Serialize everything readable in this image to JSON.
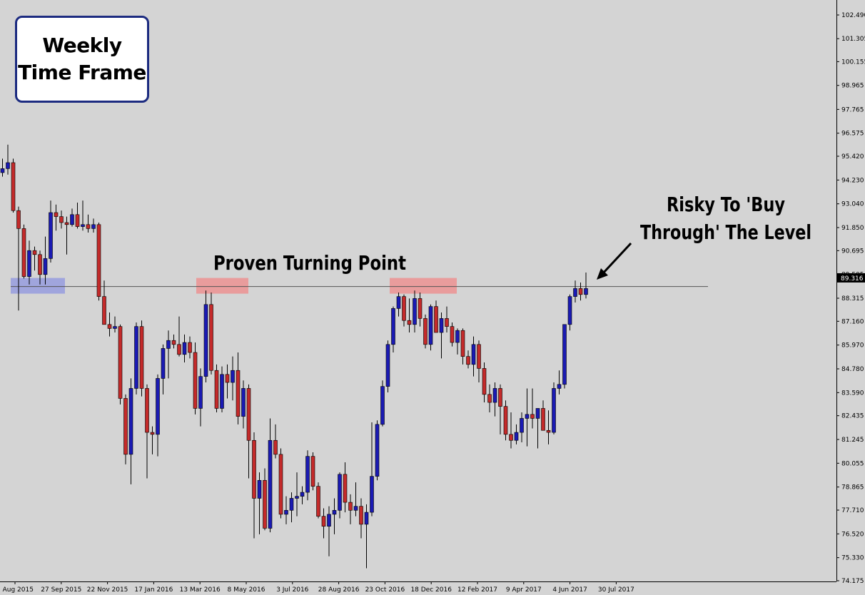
{
  "annotations": {
    "timeframe": "Weekly\nTime Frame",
    "turning_point": "Proven Turning Point",
    "risky_line1": "Risky To 'Buy",
    "risky_line2": "Through' The Level"
  },
  "current_price_label": "89.316",
  "colors": {
    "background": "#d4d4d4",
    "bull": "#1a1ab3",
    "bear": "#c42a2a",
    "wick": "#000000",
    "level_line": "#555555",
    "zone_blue": "#8f95e0",
    "zone_red": "#f08a8a",
    "frame_border": "#1c2b80"
  },
  "chart_data": {
    "type": "candlestick",
    "title": "",
    "xlabel": "",
    "ylabel": "",
    "ylim": [
      74.0,
      103.0
    ],
    "y_ticks": [
      "102.490",
      "101.305",
      "100.155",
      "98.965",
      "97.765",
      "96.575",
      "95.420",
      "94.230",
      "93.040",
      "91.850",
      "90.695",
      "89.505",
      "88.315",
      "87.160",
      "85.970",
      "84.780",
      "83.590",
      "82.435",
      "81.245",
      "80.055",
      "78.865",
      "77.710",
      "76.520",
      "75.330",
      "74.175"
    ],
    "x_ticks": [
      "2 Aug 2015",
      "27 Sep 2015",
      "22 Nov 2015",
      "17 Jan 2016",
      "13 Mar 2016",
      "8 May 2016",
      "3 Jul 2016",
      "28 Aug 2016",
      "23 Oct 2016",
      "18 Dec 2016",
      "12 Feb 2017",
      "9 Apr 2017",
      "4 Jun 2017",
      "30 Jul 2017"
    ],
    "level": 88.9,
    "candles": [
      [
        94.6,
        95.3,
        94.4,
        94.8
      ],
      [
        94.8,
        96.0,
        94.5,
        95.1
      ],
      [
        95.1,
        95.3,
        92.6,
        92.7
      ],
      [
        92.7,
        92.9,
        87.7,
        91.8
      ],
      [
        91.8,
        92.0,
        89.3,
        89.4
      ],
      [
        89.4,
        91.2,
        89.0,
        90.7
      ],
      [
        90.7,
        90.9,
        89.7,
        90.5
      ],
      [
        90.5,
        90.7,
        89.0,
        89.5
      ],
      [
        89.5,
        91.4,
        89.0,
        90.3
      ],
      [
        90.3,
        93.2,
        90.1,
        92.6
      ],
      [
        92.6,
        93.0,
        91.7,
        92.4
      ],
      [
        92.4,
        92.7,
        91.8,
        92.1
      ],
      [
        92.1,
        92.4,
        90.5,
        92.0
      ],
      [
        92.0,
        92.8,
        91.9,
        92.5
      ],
      [
        92.5,
        93.1,
        91.8,
        91.9
      ],
      [
        91.9,
        93.2,
        91.7,
        92.0
      ],
      [
        92.0,
        92.5,
        91.6,
        91.8
      ],
      [
        91.8,
        92.3,
        91.6,
        92.0
      ],
      [
        92.0,
        92.1,
        88.2,
        88.4
      ],
      [
        88.4,
        89.2,
        87.1,
        87.0
      ],
      [
        87.0,
        87.6,
        86.4,
        86.8
      ],
      [
        86.8,
        87.4,
        86.6,
        86.9
      ],
      [
        86.9,
        87.0,
        83.0,
        83.3
      ],
      [
        83.3,
        83.5,
        80.0,
        80.5
      ],
      [
        80.5,
        84.3,
        79.0,
        83.8
      ],
      [
        83.8,
        87.1,
        83.5,
        86.9
      ],
      [
        86.9,
        87.2,
        83.4,
        83.8
      ],
      [
        83.8,
        84.0,
        79.3,
        81.6
      ],
      [
        81.6,
        81.9,
        80.5,
        81.5
      ],
      [
        81.5,
        84.5,
        80.4,
        84.3
      ],
      [
        84.3,
        86.0,
        83.5,
        85.8
      ],
      [
        85.8,
        86.7,
        84.3,
        86.2
      ],
      [
        86.2,
        86.5,
        85.8,
        86.0
      ],
      [
        86.0,
        87.4,
        85.4,
        85.5
      ],
      [
        85.5,
        86.5,
        85.1,
        86.1
      ],
      [
        86.1,
        86.4,
        85.3,
        85.6
      ],
      [
        85.6,
        86.1,
        82.5,
        82.8
      ],
      [
        82.8,
        84.8,
        81.9,
        84.4
      ],
      [
        84.4,
        88.7,
        84.1,
        88.0
      ],
      [
        88.0,
        88.6,
        84.5,
        84.7
      ],
      [
        84.7,
        85.0,
        82.6,
        82.8
      ],
      [
        82.8,
        84.9,
        82.6,
        84.5
      ],
      [
        84.5,
        85.0,
        83.3,
        84.1
      ],
      [
        84.1,
        85.4,
        83.2,
        84.7
      ],
      [
        84.7,
        85.6,
        82.0,
        82.4
      ],
      [
        82.4,
        84.2,
        81.8,
        83.8
      ],
      [
        83.8,
        84.0,
        79.3,
        81.2
      ],
      [
        81.2,
        81.6,
        76.3,
        78.3
      ],
      [
        78.3,
        79.6,
        76.5,
        79.2
      ],
      [
        79.2,
        79.8,
        76.7,
        76.8
      ],
      [
        76.8,
        82.3,
        76.6,
        81.2
      ],
      [
        81.2,
        82.0,
        80.3,
        80.5
      ],
      [
        80.5,
        80.8,
        77.3,
        77.5
      ],
      [
        77.5,
        78.4,
        77.0,
        77.7
      ],
      [
        77.7,
        78.6,
        77.1,
        78.3
      ],
      [
        78.3,
        79.6,
        77.4,
        78.4
      ],
      [
        78.4,
        78.9,
        78.0,
        78.6
      ],
      [
        78.6,
        80.7,
        78.2,
        80.4
      ],
      [
        80.4,
        80.6,
        78.7,
        78.9
      ],
      [
        78.9,
        79.1,
        77.3,
        77.4
      ],
      [
        77.4,
        77.8,
        76.3,
        76.9
      ],
      [
        76.9,
        77.9,
        75.4,
        77.5
      ],
      [
        77.5,
        78.3,
        76.5,
        77.7
      ],
      [
        77.7,
        79.6,
        77.3,
        79.5
      ],
      [
        79.5,
        80.1,
        77.6,
        78.1
      ],
      [
        78.1,
        78.5,
        77.0,
        77.7
      ],
      [
        77.7,
        79.1,
        77.4,
        77.9
      ],
      [
        77.9,
        78.3,
        76.3,
        77.0
      ],
      [
        77.0,
        78.0,
        74.8,
        77.6
      ],
      [
        77.6,
        82.1,
        77.4,
        79.4
      ],
      [
        79.4,
        82.2,
        79.2,
        82.0
      ],
      [
        82.0,
        84.2,
        81.9,
        83.9
      ],
      [
        83.9,
        86.2,
        83.6,
        86.0
      ],
      [
        86.0,
        87.9,
        85.6,
        87.8
      ],
      [
        87.8,
        88.6,
        87.4,
        88.4
      ],
      [
        88.4,
        88.5,
        86.9,
        87.2
      ],
      [
        87.2,
        88.3,
        86.6,
        87.0
      ],
      [
        87.0,
        88.7,
        86.6,
        88.3
      ],
      [
        88.3,
        88.6,
        86.9,
        87.3
      ],
      [
        87.3,
        87.5,
        85.8,
        86.0
      ],
      [
        86.0,
        88.0,
        85.7,
        87.9
      ],
      [
        87.9,
        88.2,
        86.6,
        86.6
      ],
      [
        86.6,
        87.6,
        85.3,
        87.3
      ],
      [
        87.3,
        87.9,
        86.6,
        86.9
      ],
      [
        86.9,
        87.1,
        85.9,
        86.1
      ],
      [
        86.1,
        86.8,
        85.5,
        86.7
      ],
      [
        86.7,
        86.8,
        85.0,
        85.4
      ],
      [
        85.4,
        85.7,
        84.8,
        85.0
      ],
      [
        85.0,
        86.4,
        84.4,
        86.0
      ],
      [
        86.0,
        86.2,
        84.1,
        84.8
      ],
      [
        84.8,
        85.1,
        83.1,
        83.5
      ],
      [
        83.5,
        84.0,
        82.6,
        83.1
      ],
      [
        83.1,
        84.1,
        82.4,
        83.8
      ],
      [
        83.8,
        84.0,
        81.5,
        82.9
      ],
      [
        82.9,
        83.2,
        81.2,
        81.5
      ],
      [
        81.5,
        82.6,
        80.8,
        81.2
      ],
      [
        81.2,
        82.0,
        81.0,
        81.6
      ],
      [
        81.6,
        82.6,
        81.1,
        82.3
      ],
      [
        82.3,
        83.8,
        80.9,
        82.5
      ],
      [
        82.5,
        83.8,
        81.8,
        82.3
      ],
      [
        82.3,
        82.8,
        80.8,
        82.8
      ],
      [
        82.8,
        83.2,
        81.7,
        81.7
      ],
      [
        81.7,
        82.7,
        81.0,
        81.6
      ],
      [
        81.6,
        84.1,
        81.5,
        83.8
      ],
      [
        83.8,
        84.7,
        83.5,
        84.0
      ],
      [
        84.0,
        87.0,
        83.8,
        87.0
      ],
      [
        87.0,
        88.5,
        86.7,
        88.4
      ],
      [
        88.4,
        89.2,
        88.1,
        88.8
      ],
      [
        88.8,
        89.1,
        88.2,
        88.5
      ],
      [
        88.5,
        89.6,
        88.3,
        88.8
      ]
    ]
  }
}
